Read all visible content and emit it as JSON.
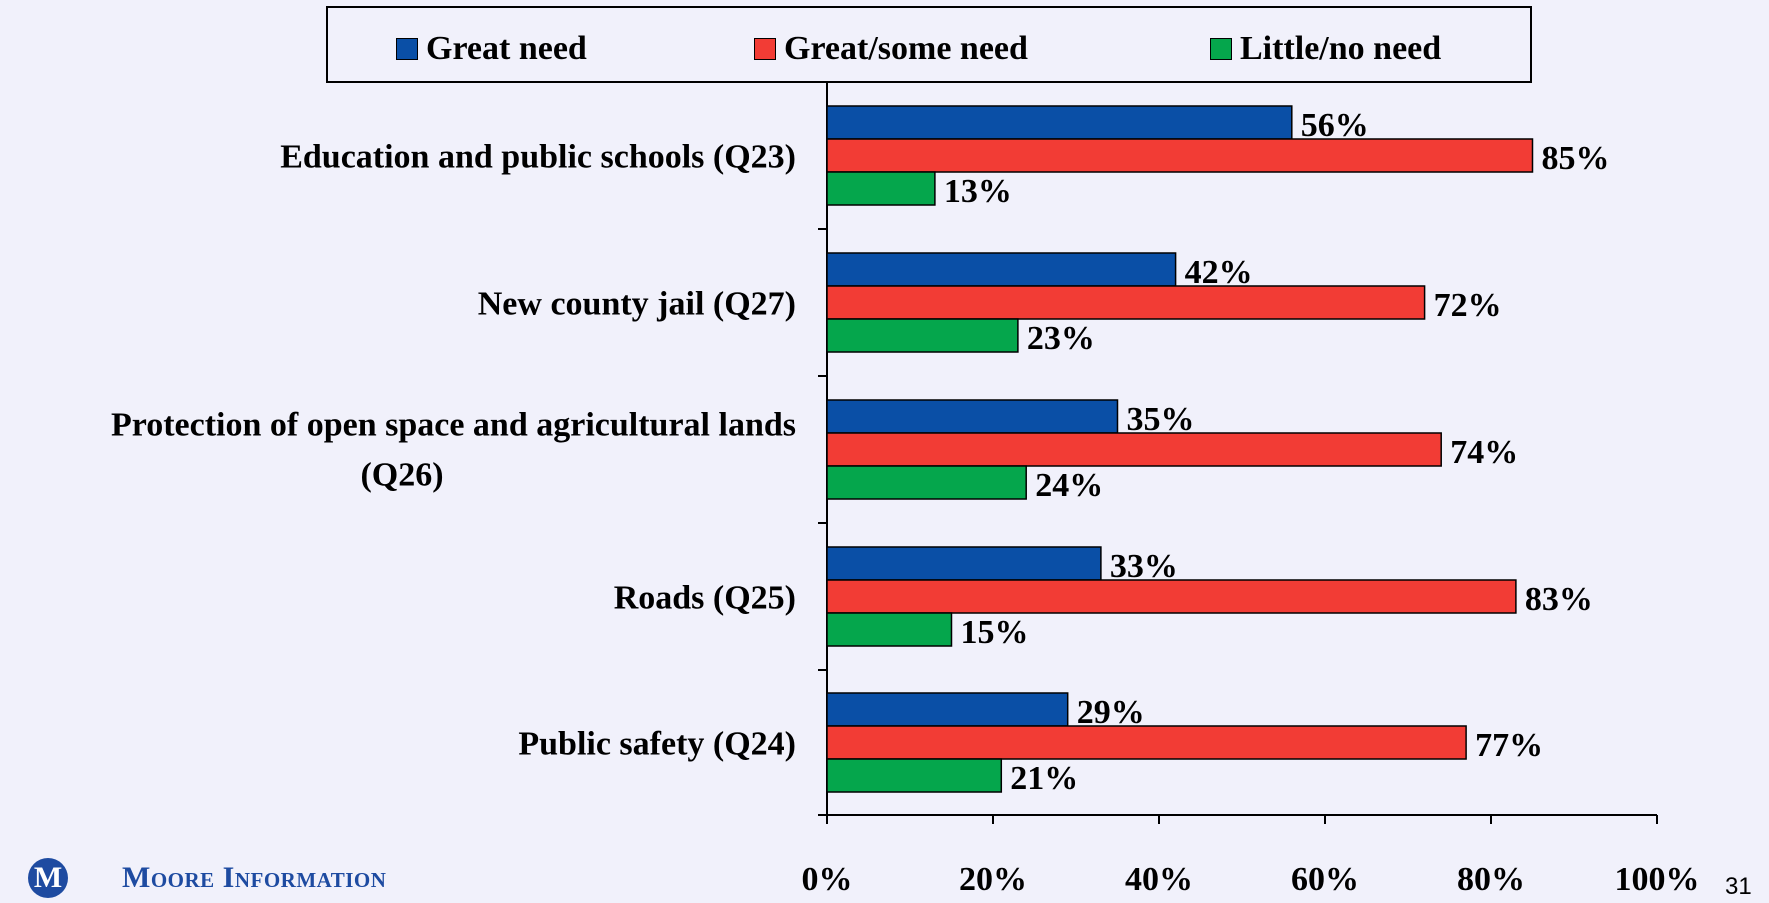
{
  "chart_data": {
    "type": "bar",
    "orientation": "horizontal",
    "title": "",
    "xlabel": "",
    "ylabel": "",
    "xlim": [
      0,
      100
    ],
    "x_ticks": [
      "0%",
      "20%",
      "40%",
      "60%",
      "80%",
      "100%"
    ],
    "tick_values": [
      0,
      20,
      40,
      60,
      80,
      100
    ],
    "grid": false,
    "legend_position": "top",
    "categories": [
      "Education and public schools (Q23)",
      "New county jail (Q27)",
      "Protection of open space and agricultural lands (Q26)",
      "Roads (Q25)",
      "Public safety (Q24)"
    ],
    "series": [
      {
        "name": "Great need",
        "color": "#0a4fa6",
        "values": [
          56,
          42,
          35,
          33,
          29
        ],
        "labels": [
          "56%",
          "42%",
          "35%",
          "33%",
          "29%"
        ]
      },
      {
        "name": "Great/some need",
        "color": "#f23c35",
        "values": [
          85,
          72,
          74,
          83,
          77
        ],
        "labels": [
          "85%",
          "72%",
          "74%",
          "83%",
          "77%"
        ]
      },
      {
        "name": "Little/no need",
        "color": "#05a64c",
        "values": [
          13,
          23,
          24,
          15,
          21
        ],
        "labels": [
          "13%",
          "23%",
          "24%",
          "15%",
          "21%"
        ]
      }
    ]
  },
  "branding": {
    "logo_mark": "M",
    "company": "Moore Information"
  },
  "page_number": "31"
}
